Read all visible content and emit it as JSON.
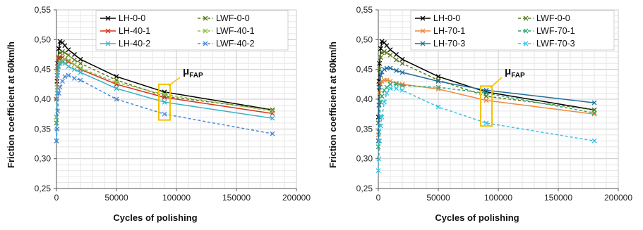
{
  "chart_data": [
    {
      "type": "line",
      "xlabel": "Cycles of polishing",
      "ylabel": "Friction coefficient at 60km/h",
      "xlim": [
        0,
        200000
      ],
      "ylim": [
        0.25,
        0.55
      ],
      "xticks": [
        0,
        50000,
        100000,
        150000,
        200000
      ],
      "xtick_labels": [
        "0",
        "50000",
        "100000",
        "150000",
        "200000"
      ],
      "yticks": [
        0.25,
        0.3,
        0.35,
        0.4,
        0.45,
        0.5,
        0.55
      ],
      "ytick_labels": [
        "0,25",
        "0,30",
        "0,35",
        "0,40",
        "0,45",
        "0,50",
        "0,55"
      ],
      "grid": true,
      "legend_position": "top-right",
      "annotation": {
        "text": "μ",
        "sub": "FAP",
        "box_x": 90000,
        "box_y": [
          0.365,
          0.425
        ]
      },
      "series": [
        {
          "name": "LH-0-0",
          "color": "#000000",
          "dashed": false,
          "x": [
            0,
            500,
            1000,
            2000,
            3000,
            5000,
            7000,
            10000,
            15000,
            20000,
            50000,
            90000,
            180000
          ],
          "y": [
            0.37,
            0.43,
            0.46,
            0.485,
            0.497,
            0.495,
            0.49,
            0.483,
            0.475,
            0.467,
            0.438,
            0.412,
            0.382
          ]
        },
        {
          "name": "LWF-0-0",
          "color": "#5a7a1a",
          "dashed": true,
          "x": [
            0,
            500,
            1000,
            2000,
            3000,
            5000,
            7000,
            10000,
            15000,
            20000,
            50000,
            90000,
            180000
          ],
          "y": [
            0.36,
            0.42,
            0.45,
            0.47,
            0.478,
            0.48,
            0.478,
            0.474,
            0.466,
            0.46,
            0.432,
            0.405,
            0.382
          ]
        },
        {
          "name": "LH-40-1",
          "color": "#d7301f",
          "dashed": false,
          "x": [
            0,
            500,
            1000,
            2000,
            3000,
            5000,
            7000,
            10000,
            15000,
            20000,
            50000,
            90000,
            180000
          ],
          "y": [
            0.4,
            0.44,
            0.455,
            0.468,
            0.47,
            0.47,
            0.467,
            0.463,
            0.458,
            0.45,
            0.425,
            0.403,
            0.376
          ]
        },
        {
          "name": "LWF-40-1",
          "color": "#8fbf45",
          "dashed": true,
          "x": [
            0,
            500,
            1000,
            2000,
            3000,
            5000,
            7000,
            10000,
            15000,
            20000,
            50000,
            90000,
            180000
          ],
          "y": [
            0.37,
            0.42,
            0.445,
            0.46,
            0.463,
            0.465,
            0.466,
            0.465,
            0.458,
            0.452,
            0.428,
            0.408,
            0.38
          ]
        },
        {
          "name": "LH-40-2",
          "color": "#3ab0c8",
          "dashed": false,
          "x": [
            0,
            500,
            1000,
            2000,
            3000,
            5000,
            7000,
            10000,
            15000,
            20000,
            50000,
            90000,
            180000
          ],
          "y": [
            0.33,
            0.41,
            0.44,
            0.455,
            0.46,
            0.462,
            0.46,
            0.455,
            0.45,
            0.445,
            0.418,
            0.395,
            0.368
          ]
        },
        {
          "name": "LWF-40-2",
          "color": "#4a88d8",
          "dashed": true,
          "x": [
            0,
            500,
            1000,
            2000,
            3000,
            5000,
            7000,
            10000,
            15000,
            20000,
            50000,
            90000,
            180000
          ],
          "y": [
            0.33,
            0.35,
            0.38,
            0.41,
            0.42,
            0.43,
            0.438,
            0.44,
            0.435,
            0.432,
            0.4,
            0.375,
            0.342
          ]
        }
      ]
    },
    {
      "type": "line",
      "xlabel": "Cycles of polishing",
      "ylabel": "Friction coefficient at 60km/h",
      "xlim": [
        0,
        200000
      ],
      "ylim": [
        0.25,
        0.55
      ],
      "xticks": [
        0,
        50000,
        100000,
        150000,
        200000
      ],
      "xtick_labels": [
        "0",
        "50000",
        "100000",
        "150000",
        "200000"
      ],
      "yticks": [
        0.25,
        0.3,
        0.35,
        0.4,
        0.45,
        0.5,
        0.55
      ],
      "ytick_labels": [
        "0,25",
        "0,30",
        "0,35",
        "0,40",
        "0,45",
        "0,50",
        "0,55"
      ],
      "grid": true,
      "legend_position": "top-right",
      "annotation": {
        "text": "μ",
        "sub": "FAP",
        "box_x": 90000,
        "box_y": [
          0.355,
          0.422
        ]
      },
      "series": [
        {
          "name": "LH-0-0",
          "color": "#000000",
          "dashed": false,
          "x": [
            0,
            500,
            1000,
            2000,
            3000,
            5000,
            7000,
            10000,
            15000,
            20000,
            50000,
            90000,
            180000
          ],
          "y": [
            0.37,
            0.43,
            0.46,
            0.485,
            0.497,
            0.495,
            0.49,
            0.483,
            0.475,
            0.467,
            0.438,
            0.412,
            0.382
          ]
        },
        {
          "name": "LWF-0-0",
          "color": "#5a7a1a",
          "dashed": true,
          "x": [
            0,
            500,
            1000,
            2000,
            3000,
            5000,
            7000,
            10000,
            15000,
            20000,
            50000,
            90000,
            180000
          ],
          "y": [
            0.36,
            0.42,
            0.45,
            0.47,
            0.478,
            0.48,
            0.478,
            0.474,
            0.466,
            0.46,
            0.432,
            0.405,
            0.382
          ]
        },
        {
          "name": "LH-70-1",
          "color": "#f08a3c",
          "dashed": false,
          "x": [
            0,
            500,
            1000,
            2000,
            3000,
            5000,
            7000,
            10000,
            15000,
            20000,
            50000,
            90000,
            180000
          ],
          "y": [
            0.34,
            0.39,
            0.41,
            0.425,
            0.43,
            0.432,
            0.432,
            0.43,
            0.427,
            0.425,
            0.417,
            0.398,
            0.375
          ]
        },
        {
          "name": "LWF-70-1",
          "color": "#2aa876",
          "dashed": true,
          "x": [
            0,
            500,
            1000,
            2000,
            3000,
            5000,
            7000,
            10000,
            15000,
            20000,
            50000,
            90000,
            180000
          ],
          "y": [
            0.32,
            0.345,
            0.37,
            0.395,
            0.405,
            0.415,
            0.42,
            0.425,
            0.425,
            0.423,
            0.42,
            0.41,
            0.377
          ]
        },
        {
          "name": "LH-70-3",
          "color": "#1f6f9a",
          "dashed": false,
          "x": [
            0,
            500,
            1000,
            2000,
            3000,
            5000,
            7000,
            10000,
            15000,
            20000,
            50000,
            90000,
            180000
          ],
          "y": [
            0.33,
            0.39,
            0.42,
            0.44,
            0.446,
            0.45,
            0.452,
            0.452,
            0.448,
            0.445,
            0.43,
            0.415,
            0.394
          ]
        },
        {
          "name": "LWF-70-3",
          "color": "#33c3e8",
          "dashed": true,
          "x": [
            0,
            500,
            1000,
            2000,
            3000,
            5000,
            7000,
            10000,
            15000,
            20000,
            50000,
            90000,
            180000
          ],
          "y": [
            0.28,
            0.3,
            0.33,
            0.355,
            0.37,
            0.395,
            0.41,
            0.418,
            0.418,
            0.415,
            0.387,
            0.36,
            0.33
          ]
        }
      ]
    }
  ]
}
